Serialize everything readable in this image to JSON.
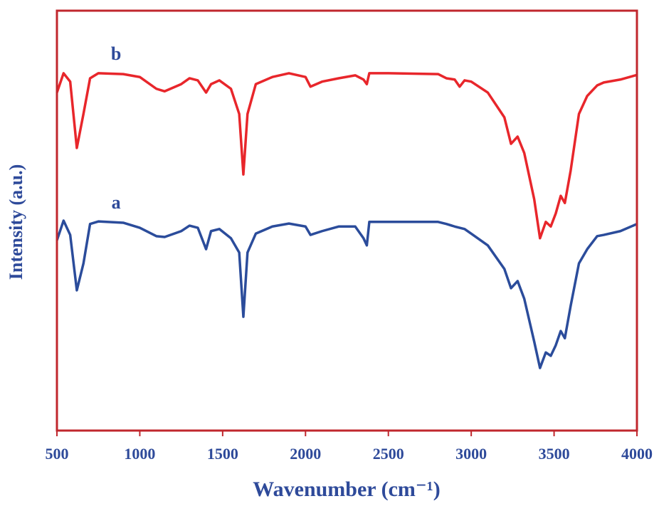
{
  "chart_data": {
    "type": "line",
    "x_label": "Wavenumber (cm⁻¹)",
    "y_label": "Intensity (a.u.)",
    "x": [
      500,
      540,
      580,
      620,
      660,
      700,
      750,
      900,
      1000,
      1100,
      1150,
      1250,
      1300,
      1350,
      1400,
      1430,
      1480,
      1550,
      1600,
      1625,
      1650,
      1700,
      1800,
      1900,
      2000,
      2030,
      2100,
      2200,
      2300,
      2350,
      2370,
      2385,
      2500,
      2800,
      2850,
      2900,
      2930,
      2960,
      3000,
      3100,
      3200,
      3240,
      3280,
      3320,
      3380,
      3415,
      3450,
      3480,
      3510,
      3540,
      3565,
      3600,
      3650,
      3700,
      3760,
      3800,
      3900,
      4000
    ],
    "series": [
      {
        "name": "b",
        "color": "#e8262b",
        "values": [
          80.5,
          85.1,
          83.1,
          67.3,
          75.4,
          83.9,
          85.1,
          84.9,
          84.2,
          81.4,
          80.8,
          82.5,
          83.9,
          83.4,
          80.5,
          82.5,
          83.4,
          81.4,
          75.4,
          61.0,
          75.4,
          82.5,
          84.2,
          85.1,
          84.2,
          81.9,
          83.1,
          83.9,
          84.6,
          83.6,
          82.5,
          85.1,
          85.1,
          84.9,
          83.9,
          83.6,
          81.9,
          83.4,
          83.1,
          80.5,
          74.6,
          68.3,
          70.0,
          66.1,
          55.1,
          45.8,
          49.7,
          48.6,
          51.7,
          55.9,
          54.2,
          61.9,
          75.4,
          79.7,
          82.2,
          82.9,
          83.6,
          84.7
        ]
      },
      {
        "name": "a",
        "color": "#2b4c9b",
        "values": [
          45.3,
          50.0,
          46.6,
          33.4,
          39.8,
          49.2,
          49.8,
          49.5,
          48.3,
          46.3,
          46.1,
          47.5,
          48.8,
          48.3,
          43.2,
          47.5,
          48.0,
          45.8,
          42.4,
          27.1,
          42.4,
          46.9,
          48.6,
          49.3,
          48.6,
          46.6,
          47.5,
          48.6,
          48.6,
          45.8,
          44.1,
          49.7,
          49.7,
          49.7,
          49.2,
          48.6,
          48.3,
          48.0,
          46.9,
          44.1,
          38.5,
          33.9,
          35.6,
          31.4,
          21.2,
          14.9,
          18.6,
          17.8,
          20.3,
          23.7,
          22.0,
          29.7,
          39.8,
          43.2,
          46.3,
          46.6,
          47.5,
          49.2
        ]
      }
    ],
    "xlim": [
      500,
      4000
    ],
    "xticks": [
      500,
      1000,
      1500,
      2000,
      2500,
      3000,
      3500,
      4000
    ],
    "ylim": [
      0,
      100
    ],
    "yticks": [],
    "frame_color": "#c0272d"
  }
}
